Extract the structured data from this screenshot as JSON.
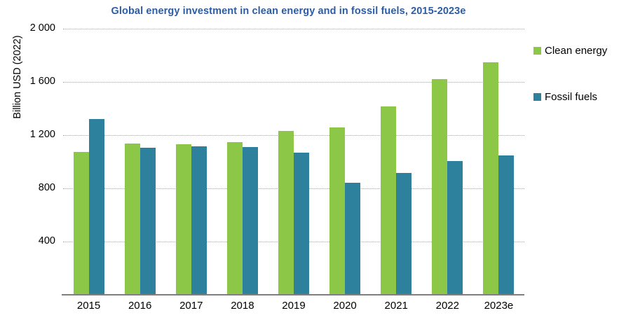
{
  "title_color": "#2b5ca8",
  "chart_data": {
    "type": "bar",
    "title": "Global energy investment in clean energy and in fossil fuels, 2015-2023e",
    "xlabel": "",
    "ylabel": "Billion USD (2022)",
    "ylim": [
      0,
      2000
    ],
    "grid": "horizontal-dotted",
    "legend_position": "right",
    "categories": [
      "2015",
      "2016",
      "2017",
      "2018",
      "2019",
      "2020",
      "2021",
      "2022",
      "2023e"
    ],
    "series": [
      {
        "name": "Clean energy",
        "color": "#8dc748",
        "values": [
          1075,
          1135,
          1130,
          1145,
          1230,
          1260,
          1415,
          1620,
          1750
        ]
      },
      {
        "name": "Fossil fuels",
        "color": "#2e819c",
        "values": [
          1320,
          1105,
          1115,
          1110,
          1070,
          840,
          915,
          1005,
          1050
        ]
      }
    ],
    "y_ticks": [
      {
        "value": 400,
        "label": "400"
      },
      {
        "value": 800,
        "label": "800"
      },
      {
        "value": 1200,
        "label": "1 200"
      },
      {
        "value": 1600,
        "label": "1 600"
      },
      {
        "value": 2000,
        "label": "2 000"
      }
    ]
  }
}
